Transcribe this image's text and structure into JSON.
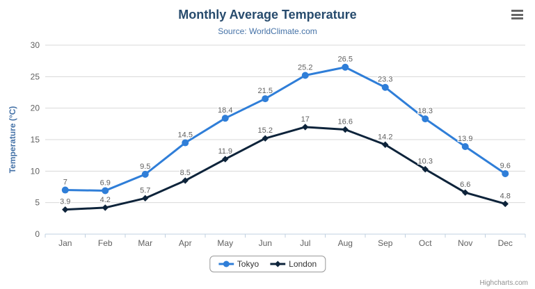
{
  "chart": {
    "title": "Monthly Average Temperature",
    "subtitle": "Source: WorldClimate.com"
  },
  "chart_data": {
    "type": "line",
    "categories": [
      "Jan",
      "Feb",
      "Mar",
      "Apr",
      "May",
      "Jun",
      "Jul",
      "Aug",
      "Sep",
      "Oct",
      "Nov",
      "Dec"
    ],
    "series": [
      {
        "name": "Tokyo",
        "color": "#2f7ed8",
        "marker": "circle",
        "values": [
          7,
          6.9,
          9.5,
          14.5,
          18.4,
          21.5,
          25.2,
          26.5,
          23.3,
          18.3,
          13.9,
          9.6
        ]
      },
      {
        "name": "London",
        "color": "#0d233a",
        "marker": "diamond",
        "values": [
          3.9,
          4.2,
          5.7,
          8.5,
          11.9,
          15.2,
          17,
          16.6,
          14.2,
          10.3,
          6.6,
          4.8
        ]
      }
    ],
    "xlabel": "",
    "ylabel": "Temperature (°C)",
    "ylim": [
      0,
      30
    ],
    "yticks": [
      0,
      5,
      10,
      15,
      20,
      25,
      30
    ],
    "grid": true,
    "data_labels": true,
    "legend_position": "bottom-center"
  },
  "credits": "Highcharts.com",
  "colors": {
    "title": "#274b6d",
    "subtitle": "#4572a7",
    "axis_title": "#4572a7",
    "tick_label": "#606060",
    "data_label": "#606060",
    "grid_line": "#d8d8d8",
    "axis_line": "#c0d0e0",
    "tokyo": "#2f7ed8",
    "london": "#0d233a"
  }
}
